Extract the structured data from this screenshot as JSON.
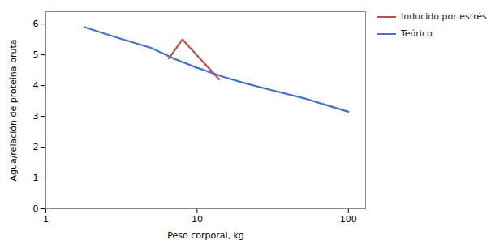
{
  "chart_data": {
    "type": "line",
    "xlabel": "Peso corporal, kg",
    "ylabel": "Agua/relación de proteína bruta",
    "series": [
      {
        "name": "Inducido por estrés",
        "color": "#C0504D",
        "x": [
          6.5,
          8.0,
          14.0
        ],
        "values": [
          4.88,
          5.5,
          4.2
        ]
      },
      {
        "name": "Teórico",
        "color": "#4472C4",
        "x": [
          1.8,
          3,
          5,
          7,
          10,
          15,
          20,
          30,
          50,
          70,
          100
        ],
        "values": [
          5.9,
          5.55,
          5.22,
          4.88,
          4.58,
          4.28,
          4.1,
          3.87,
          3.6,
          3.38,
          3.15
        ]
      }
    ],
    "log": "x",
    "xlim": [
      1.0,
      130
    ],
    "xticks": [
      1,
      10,
      100
    ],
    "ylim": [
      0,
      6.4
    ],
    "yticks": [
      0,
      1,
      2,
      3,
      4,
      5,
      6
    ],
    "grid": false,
    "legend": "upper right"
  }
}
